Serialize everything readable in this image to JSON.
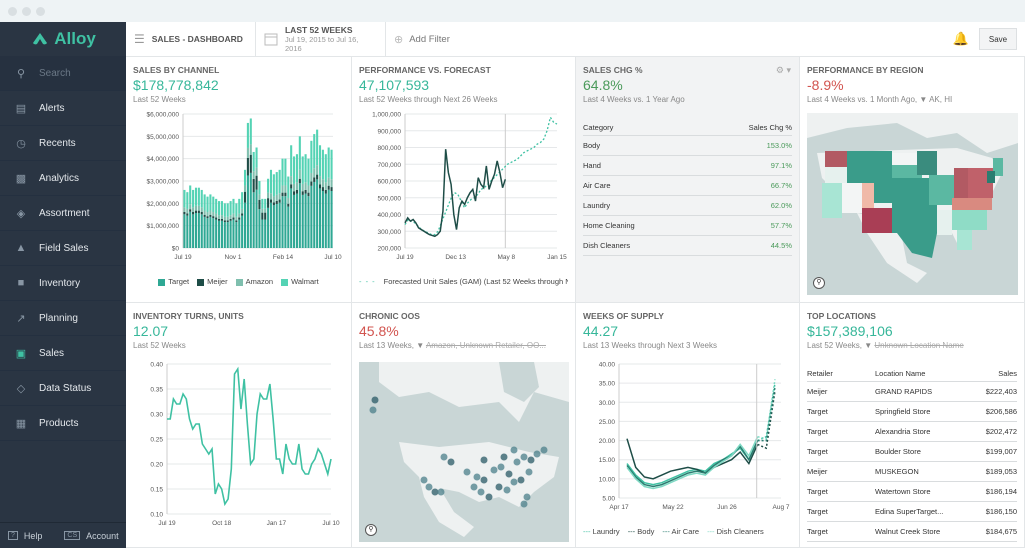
{
  "app": {
    "name": "Alloy",
    "brand_color": "#3fc1a3"
  },
  "sidebar": {
    "search_placeholder": "Search",
    "items": [
      {
        "label": "Alerts",
        "icon": "chat-icon"
      },
      {
        "label": "Recents",
        "icon": "clock-icon"
      },
      {
        "label": "Analytics",
        "icon": "bar-chart-icon"
      },
      {
        "label": "Assortment",
        "icon": "assortment-icon"
      },
      {
        "label": "Field Sales",
        "icon": "person-icon"
      },
      {
        "label": "Inventory",
        "icon": "box-icon"
      },
      {
        "label": "Planning",
        "icon": "line-chart-icon"
      },
      {
        "label": "Sales",
        "icon": "cart-icon",
        "active": true
      },
      {
        "label": "Data Status",
        "icon": "link-icon"
      },
      {
        "label": "Products",
        "icon": "grid-icon"
      }
    ],
    "help": "Help",
    "account": "Account",
    "account_initials": "CS"
  },
  "topbar": {
    "title": "SALES - DASHBOARD",
    "date_range_label": "LAST 52 WEEKS",
    "date_range_sub": "Jul 19, 2015 to Jul 16, 2016",
    "add_filter": "Add Filter",
    "save": "Save"
  },
  "cards": {
    "sales_by_channel": {
      "title": "SALES BY CHANNEL",
      "value": "$178,778,842",
      "sub": "Last 52 Weeks"
    },
    "perf_vs_forecast": {
      "title": "PERFORMANCE VS. FORECAST",
      "value": "47,107,593",
      "sub": "Last 52 Weeks through Next 26 Weeks"
    },
    "sales_chg": {
      "title": "SALES CHG %",
      "value": "64.8%",
      "sub": "Last 4 Weeks vs. 1 Year Ago",
      "headers": [
        "Category",
        "Sales Chg %"
      ],
      "rows": [
        [
          "Body",
          "153.0%"
        ],
        [
          "Hand",
          "97.1%"
        ],
        [
          "Air Care",
          "66.7%"
        ],
        [
          "Laundry",
          "62.0%"
        ],
        [
          "Home Cleaning",
          "57.7%"
        ],
        [
          "Dish Cleaners",
          "44.5%"
        ]
      ]
    },
    "perf_by_region": {
      "title": "PERFORMANCE BY REGION",
      "value": "-8.9%",
      "sub": "Last 4 Weeks vs. 1 Month Ago,",
      "filter": "AK, HI"
    },
    "inventory_turns": {
      "title": "INVENTORY TURNS, UNITS",
      "value": "12.07",
      "sub": "Last 52 Weeks"
    },
    "chronic_oos": {
      "title": "CHRONIC OOS",
      "value": "45.8%",
      "sub": "Last 13 Weeks,",
      "filter": "Amazon, Unknown Retailer, OO..."
    },
    "weeks_of_supply": {
      "title": "WEEKS OF SUPPLY",
      "value": "44.27",
      "sub": "Last 13 Weeks through Next 3 Weeks"
    },
    "top_locations": {
      "title": "TOP LOCATIONS",
      "value": "$157,389,106",
      "sub": "Last 52 Weeks,",
      "filter": "Unknown Location Name",
      "headers": [
        "Retailer",
        "Location Name",
        "Sales"
      ],
      "rows": [
        [
          "Meijer",
          "GRAND RAPIDS",
          "$222,403"
        ],
        [
          "Target",
          "Springfield Store",
          "$206,586"
        ],
        [
          "Target",
          "Alexandria Store",
          "$202,472"
        ],
        [
          "Target",
          "Boulder Store",
          "$199,007"
        ],
        [
          "Meijer",
          "MUSKEGON",
          "$189,053"
        ],
        [
          "Target",
          "Watertown Store",
          "$186,194"
        ],
        [
          "Target",
          "Edina SuperTarget...",
          "$186,150"
        ],
        [
          "Target",
          "Walnut Creek Store",
          "$184,675"
        ]
      ]
    }
  },
  "chart_data": [
    {
      "id": "sales_by_channel",
      "type": "bar",
      "stacked": true,
      "title": "SALES BY CHANNEL",
      "xticks": [
        "Jul 19",
        "Nov 1",
        "Feb 14",
        "Jul 10"
      ],
      "yticks": [
        "$0",
        "$1,000,000",
        "$2,000,000",
        "$3,000,000",
        "$4,000,000",
        "$5,000,000",
        "$6,000,000"
      ],
      "ylim": [
        0,
        6000000
      ],
      "legend": [
        "Target",
        "Meijer",
        "Amazon",
        "Walmart"
      ],
      "colors": [
        "#2fa894",
        "#1e4d47",
        "#7fbfae",
        "#54d3b4"
      ],
      "totals_millions": [
        2.6,
        2.5,
        2.8,
        2.6,
        2.7,
        2.7,
        2.6,
        2.4,
        2.3,
        2.4,
        2.3,
        2.2,
        2.1,
        2.1,
        2.0,
        2.0,
        2.1,
        2.2,
        2.0,
        2.2,
        2.5,
        3.5,
        5.6,
        5.8,
        4.3,
        4.5,
        3.0,
        2.2,
        2.2,
        3.1,
        3.5,
        3.3,
        3.4,
        3.5,
        4.0,
        4.0,
        3.2,
        4.6,
        4.1,
        4.2,
        5.0,
        4.1,
        4.2,
        4.0,
        4.8,
        5.1,
        5.3,
        4.6,
        4.4,
        4.2,
        4.5,
        4.4
      ]
    },
    {
      "id": "perf_vs_forecast",
      "type": "line",
      "xticks": [
        "Jul 19",
        "Dec 13",
        "May 8",
        "Jan 15"
      ],
      "yticks": [
        "200,000",
        "300,000",
        "400,000",
        "500,000",
        "600,000",
        "700,000",
        "800,000",
        "900,000",
        "1,000,000"
      ],
      "ylim": [
        200000,
        1000000
      ],
      "legend": [
        "Forecasted Unit Sales (GAM) (Last 52 Weeks through Next 26 Weeks)"
      ],
      "actual_thousands": [
        350,
        380,
        360,
        370,
        350,
        320,
        310,
        300,
        290,
        280,
        275,
        270,
        280,
        300,
        420,
        790,
        650,
        580,
        400,
        310,
        440,
        480,
        460,
        500,
        530,
        550,
        480,
        620,
        580,
        560,
        690,
        550,
        600,
        640,
        720,
        650,
        560,
        610
      ],
      "forecast_thousands": [
        340,
        370,
        360,
        350,
        330,
        310,
        300,
        290,
        280,
        280,
        300,
        350,
        400,
        450,
        500,
        530,
        520,
        480,
        440,
        470,
        490,
        500,
        520,
        550,
        560,
        580,
        600,
        620,
        640,
        660,
        680,
        700,
        710,
        720,
        730,
        750,
        770,
        780,
        790,
        800,
        820,
        830,
        850,
        900,
        980,
        950,
        940
      ]
    },
    {
      "id": "inventory_turns",
      "type": "line",
      "xticks": [
        "Jul 19",
        "Oct 18",
        "Jan 17",
        "Jul 10"
      ],
      "yticks": [
        "0.10",
        "0.15",
        "0.20",
        "0.25",
        "0.30",
        "0.35",
        "0.40"
      ],
      "ylim": [
        0.1,
        0.4
      ],
      "values": [
        0.29,
        0.29,
        0.33,
        0.32,
        0.32,
        0.34,
        0.33,
        0.29,
        0.27,
        0.28,
        0.28,
        0.24,
        0.23,
        0.22,
        0.23,
        0.14,
        0.16,
        0.15,
        0.12,
        0.13,
        0.19,
        0.38,
        0.39,
        0.31,
        0.37,
        0.28,
        0.2,
        0.21,
        0.3,
        0.34,
        0.33,
        0.33,
        0.36,
        0.29,
        0.21,
        0.21,
        0.18,
        0.24,
        0.21,
        0.2,
        0.2,
        0.24,
        0.19,
        0.18,
        0.18,
        0.2,
        0.21,
        0.23,
        0.22,
        0.2,
        0.18,
        0.21
      ]
    },
    {
      "id": "weeks_of_supply",
      "type": "line",
      "xticks": [
        "Apr 17",
        "May 22",
        "Jun 26",
        "Aug 7"
      ],
      "yticks": [
        "5.00",
        "10.00",
        "15.00",
        "20.00",
        "25.00",
        "30.00",
        "35.00",
        "40.00"
      ],
      "ylim": [
        5,
        40
      ],
      "legend": [
        "Laundry",
        "Body",
        "Air Care",
        "Dish Cleaners"
      ],
      "series": [
        {
          "name": "Laundry",
          "color": "#3fc1a3",
          "values": [
            14,
            11,
            9,
            8.5,
            9,
            10,
            11,
            12,
            12.5,
            12,
            14,
            15,
            16.5,
            18,
            15,
            20,
            21,
            35
          ]
        },
        {
          "name": "Body",
          "color": "#1e4d47",
          "values": [
            20.5,
            13,
            10.5,
            10,
            11,
            12,
            12.5,
            13,
            12.5,
            11.5,
            13,
            14,
            15,
            17,
            14,
            19,
            18,
            33
          ]
        },
        {
          "name": "Air Care",
          "color": "#2a7d70",
          "values": [
            13.5,
            10.5,
            8.5,
            8,
            8.5,
            9.5,
            10.5,
            11.5,
            12,
            11.5,
            13.5,
            15,
            16,
            18.5,
            15,
            20,
            20,
            34
          ]
        },
        {
          "name": "Dish Cleaners",
          "color": "#7fd9c4",
          "values": [
            13,
            10,
            8,
            7.5,
            8,
            9,
            10,
            11,
            11.5,
            11,
            13,
            14.5,
            16,
            19,
            16,
            21,
            20.5,
            36
          ]
        }
      ],
      "forecast_start_index": 15
    }
  ]
}
